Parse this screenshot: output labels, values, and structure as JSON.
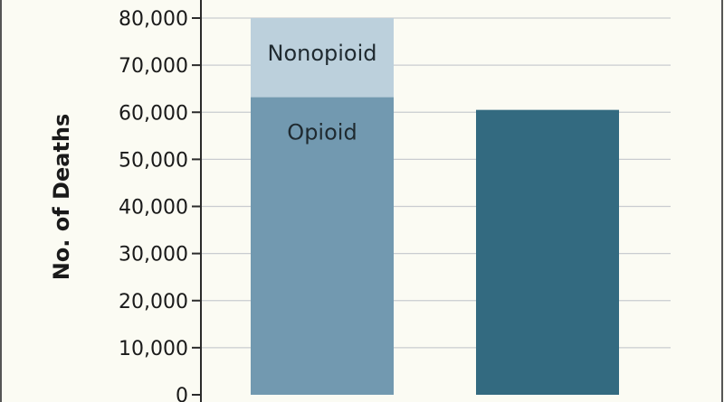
{
  "chart_data": {
    "type": "bar",
    "stacked": true,
    "ylabel": "No. of Deaths",
    "ylim": [
      0,
      80000
    ],
    "yticks": [
      0,
      10000,
      20000,
      30000,
      40000,
      50000,
      60000,
      70000,
      80000
    ],
    "ytick_labels": [
      "0",
      "10,000",
      "20,000",
      "30,000",
      "40,000",
      "50,000",
      "60,000",
      "70,000",
      "80,000"
    ],
    "grid": true,
    "bars": [
      {
        "segments": [
          {
            "label": "Opioid",
            "value": 63200,
            "color": "#7299b0"
          },
          {
            "label": "Nonopioid",
            "value": 16800,
            "color": "#bcd0dc"
          }
        ]
      },
      {
        "segments": [
          {
            "label": "",
            "value": 60500,
            "color": "#336a80"
          }
        ]
      }
    ]
  },
  "colors": {
    "background": "#fbfbf3",
    "grid": "#c9ccd0",
    "axis": "#2b2b2b"
  }
}
